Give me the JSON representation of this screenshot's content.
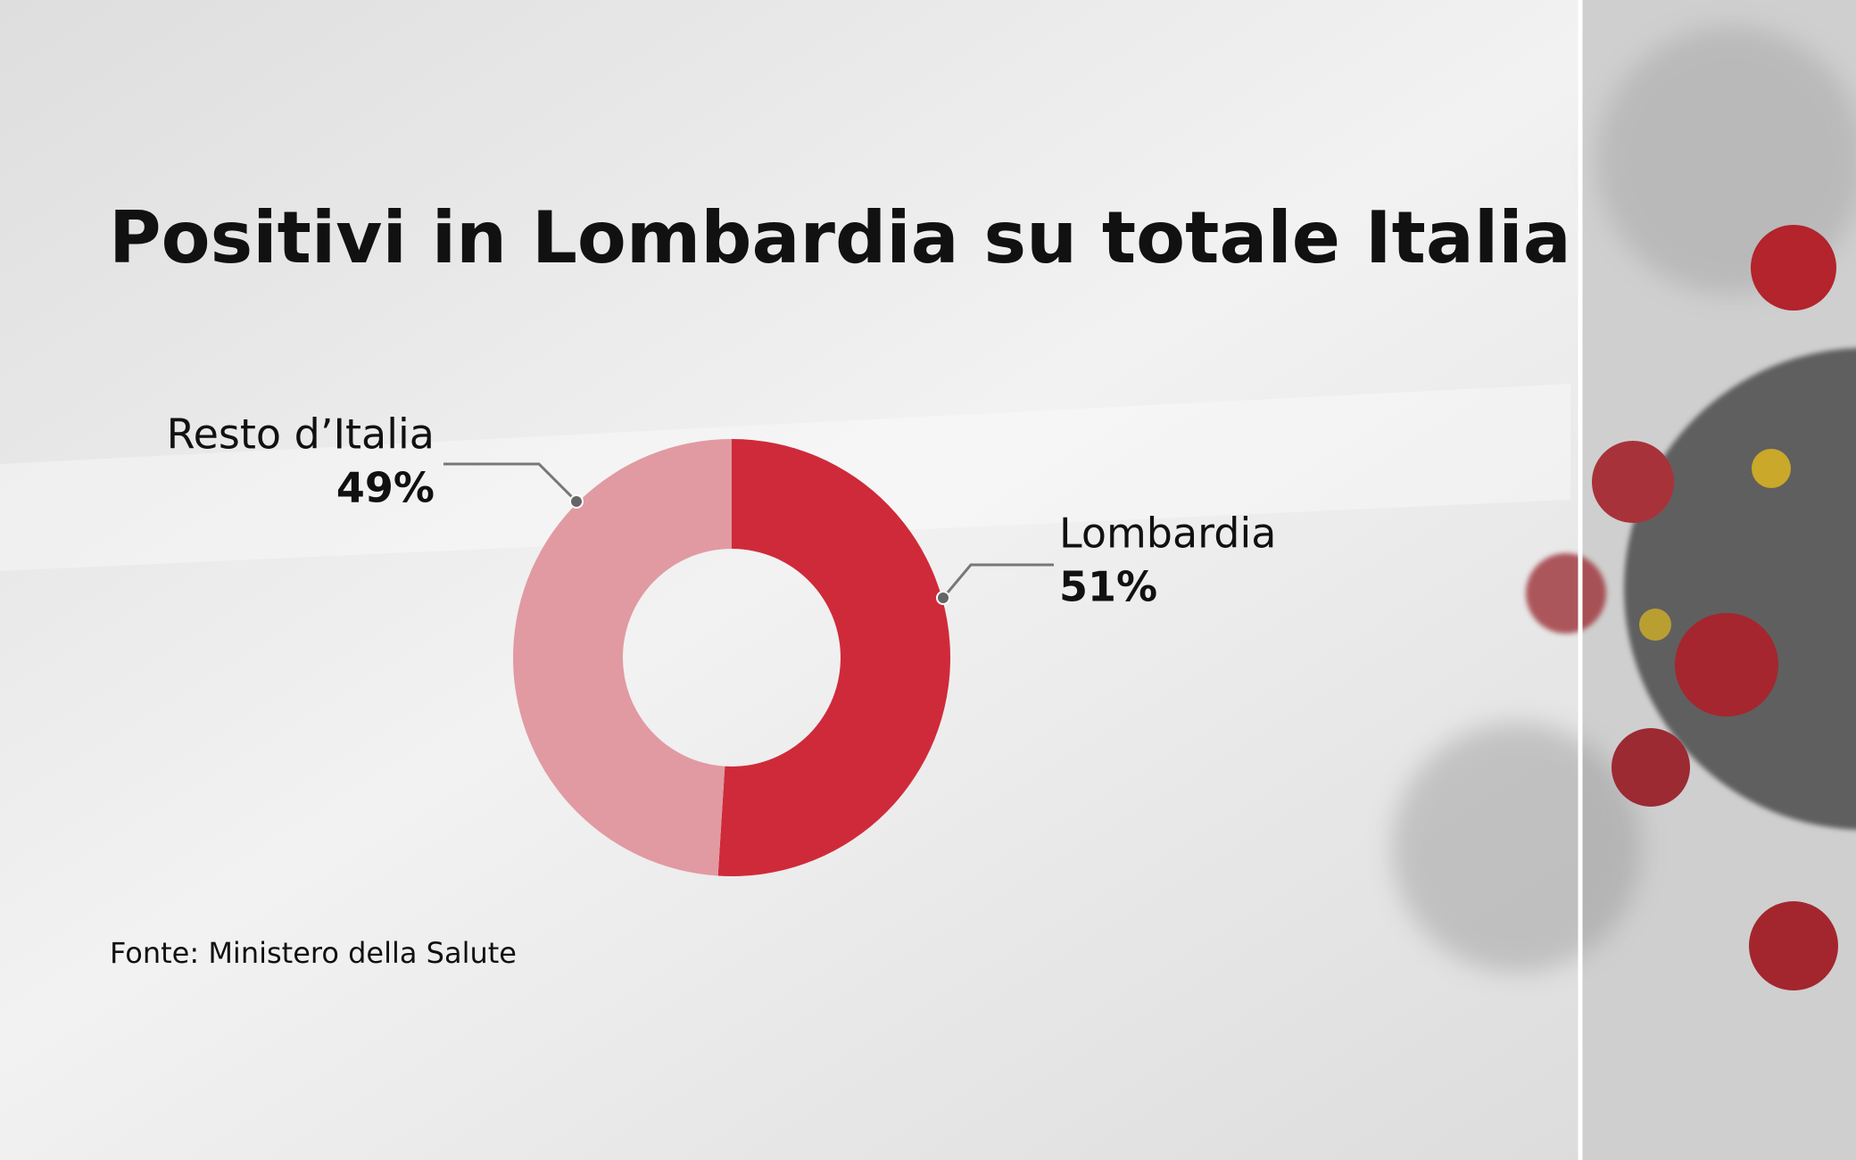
{
  "chart_data": {
    "type": "donut",
    "title": "Positivi in Lombardia su totale Italia",
    "categories": [
      "Lombardia",
      "Resto d’Italia"
    ],
    "values": [
      51,
      49
    ],
    "value_labels": [
      "51%",
      "49%"
    ],
    "colors": [
      "#cf2a3a",
      "#e19aa2"
    ],
    "source": "Fonte: Ministero della Salute"
  }
}
